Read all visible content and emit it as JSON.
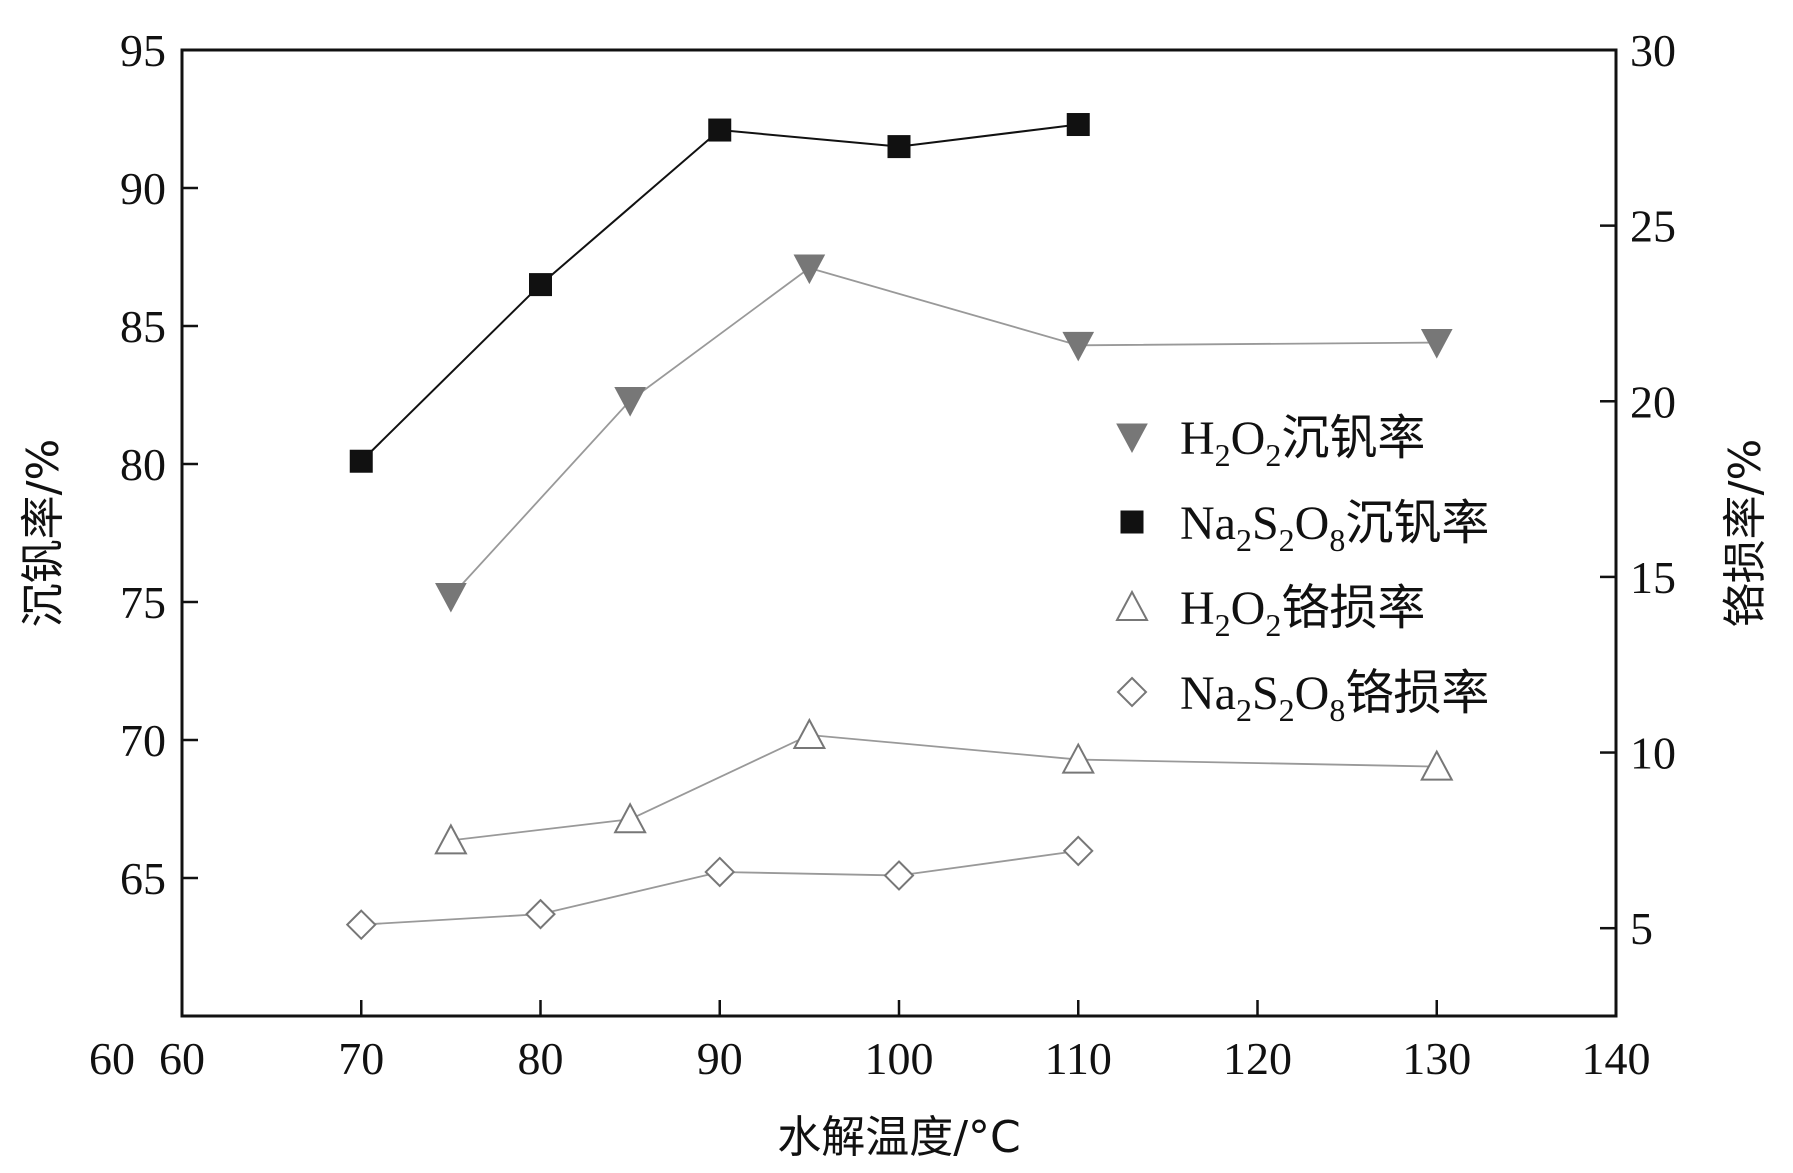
{
  "chart_data": {
    "type": "line",
    "title": "",
    "xlabel": "水解温度/°C",
    "ylabel_left": "沉钒率/%",
    "ylabel_right": "铬损率/%",
    "xlim": [
      60,
      140
    ],
    "ylim_left": [
      60,
      95
    ],
    "ylim_right": [
      2.5,
      30
    ],
    "x_ticks": [
      60,
      70,
      80,
      90,
      100,
      110,
      120,
      130,
      140
    ],
    "y_left_ticks": [
      65,
      70,
      75,
      80,
      85,
      90,
      95
    ],
    "y_right_ticks": [
      5,
      10,
      15,
      20,
      25,
      30
    ],
    "legend_position": "right",
    "series": [
      {
        "name": "H2O2沉钒率",
        "label_parts": [
          [
            "H",
            ""
          ],
          [
            "2",
            "sub"
          ],
          [
            "O",
            ""
          ],
          [
            "2",
            "sub"
          ],
          [
            "沉钒率",
            ""
          ]
        ],
        "axis": "left",
        "marker": "triangle-down-filled",
        "color": "#777777",
        "line_color": "#999999",
        "x": [
          75,
          85,
          95,
          110,
          130
        ],
        "values": [
          75.2,
          82.3,
          87.1,
          84.3,
          84.4
        ]
      },
      {
        "name": "Na2S2O8沉钒率",
        "label_parts": [
          [
            "Na",
            ""
          ],
          [
            "2",
            "sub"
          ],
          [
            "S",
            ""
          ],
          [
            "2",
            "sub"
          ],
          [
            "O",
            ""
          ],
          [
            "8",
            "sub"
          ],
          [
            "沉钒率",
            ""
          ]
        ],
        "axis": "left",
        "marker": "square-filled",
        "color": "#111111",
        "line_color": "#111111",
        "x": [
          70,
          80,
          90,
          100,
          110
        ],
        "values": [
          80.1,
          86.5,
          92.1,
          91.5,
          92.3
        ]
      },
      {
        "name": "H2O2铬损率",
        "label_parts": [
          [
            "H",
            ""
          ],
          [
            "2",
            "sub"
          ],
          [
            "O",
            ""
          ],
          [
            "2",
            "sub"
          ],
          [
            "铬损率",
            ""
          ]
        ],
        "axis": "right",
        "marker": "triangle-up-open",
        "color": "#777777",
        "line_color": "#999999",
        "x": [
          75,
          85,
          95,
          110,
          130
        ],
        "values": [
          7.5,
          8.1,
          10.5,
          9.8,
          9.6
        ]
      },
      {
        "name": "Na2S2O8铬损率",
        "label_parts": [
          [
            "Na",
            ""
          ],
          [
            "2",
            "sub"
          ],
          [
            "S",
            ""
          ],
          [
            "2",
            "sub"
          ],
          [
            "O",
            ""
          ],
          [
            "8",
            "sub"
          ],
          [
            "铬损率",
            ""
          ]
        ],
        "axis": "right",
        "marker": "diamond-open",
        "color": "#777777",
        "line_color": "#999999",
        "x": [
          70,
          80,
          90,
          100,
          110
        ],
        "values": [
          5.1,
          5.4,
          6.6,
          6.5,
          7.2
        ]
      }
    ]
  }
}
